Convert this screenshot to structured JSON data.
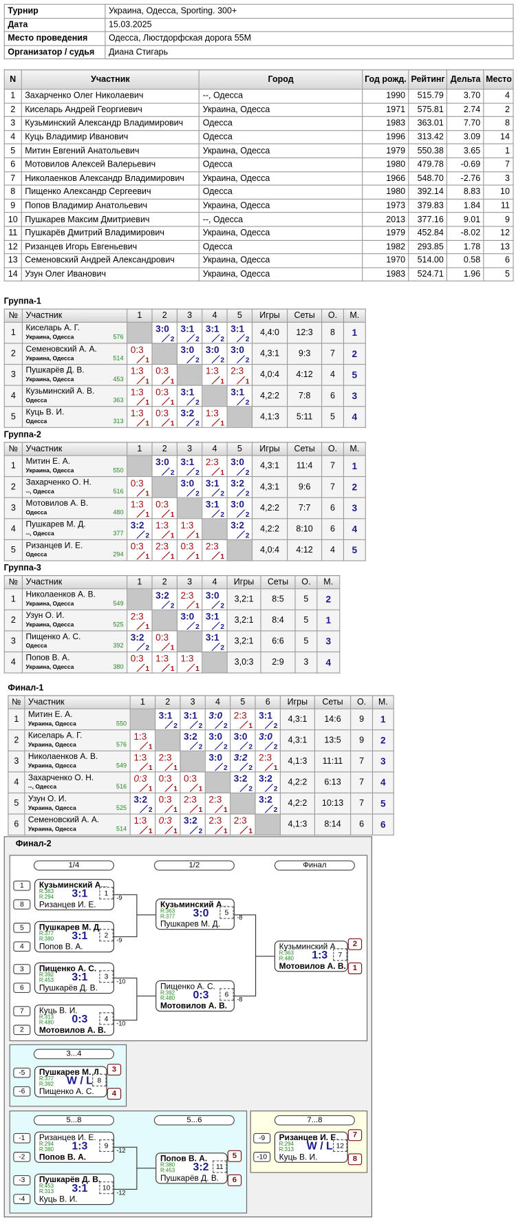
{
  "info": {
    "rows": [
      [
        "Турнир",
        "Украина, Одесса, Sporting. 300+"
      ],
      [
        "Дата",
        "15.03.2025"
      ],
      [
        "Место проведения",
        "Одесса, Люстдорфская дорога 55М"
      ],
      [
        "Организатор / судья",
        "Диана Стигарь"
      ]
    ]
  },
  "players": {
    "header": [
      "N",
      "Участник",
      "Город",
      "Год рожд.",
      "Рейтинг",
      "Дельта",
      "Место"
    ],
    "rows": [
      [
        "1",
        "Захарченко Олег Николаевич",
        "--, Одесса",
        "1990",
        "515.79",
        "3.70",
        "4"
      ],
      [
        "2",
        "Киселарь Андрей Георгиевич",
        "Украина, Одесса",
        "1971",
        "575.81",
        "2.74",
        "2"
      ],
      [
        "3",
        "Кузьминский Александр Владимирович",
        "Одесса",
        "1983",
        "363.01",
        "7.70",
        "8"
      ],
      [
        "4",
        "Куць Владимир Иванович",
        "Одесса",
        "1996",
        "313.42",
        "3.09",
        "14"
      ],
      [
        "5",
        "Митин Евгений Анатольевич",
        "Украина, Одесса",
        "1979",
        "550.38",
        "3.65",
        "1"
      ],
      [
        "6",
        "Мотовилов Алексей Валерьевич",
        "Одесса",
        "1980",
        "479.78",
        "-0.69",
        "7"
      ],
      [
        "7",
        "Николаенков Александр Владимирович",
        "Украина, Одесса",
        "1966",
        "548.70",
        "-2.76",
        "3"
      ],
      [
        "8",
        "Пищенко Александр Сергеевич",
        "Одесса",
        "1980",
        "392.14",
        "8.83",
        "10"
      ],
      [
        "9",
        "Попов Владимир Анатольевич",
        "Украина, Одесса",
        "1973",
        "379.83",
        "1.84",
        "11"
      ],
      [
        "10",
        "Пушкарев Максим Дмитриевич",
        "--, Одесса",
        "2013",
        "377.16",
        "9.01",
        "9"
      ],
      [
        "11",
        "Пушкарёв Дмитрий Владимирович",
        "Украина, Одесса",
        "1979",
        "452.84",
        "-8.02",
        "12"
      ],
      [
        "12",
        "Ризанцев Игорь Евгеньевич",
        "Одесса",
        "1982",
        "293.85",
        "1.78",
        "13"
      ],
      [
        "13",
        "Семеновский Андрей Александрович",
        "Украина, Одесса",
        "1970",
        "514.00",
        "0.58",
        "6"
      ],
      [
        "14",
        "Узун Олег Иванович",
        "Украина, Одесса",
        "1983",
        "524.71",
        "1.96",
        "5"
      ]
    ]
  },
  "groups": [
    {
      "title": "Группа-1",
      "header": [
        "№",
        "Участник",
        "1",
        "2",
        "3",
        "4",
        "5",
        "Игры",
        "Сеты",
        "О.",
        "М."
      ],
      "rows": [
        {
          "cells": [
            "1",
            "Киселарь А. Г.",
            "Украина, Одесса",
            "576"
          ],
          "results": [
            null,
            {
              "s": "3:0",
              "p": "2"
            },
            {
              "s": "3:1",
              "p": "2"
            },
            {
              "s": "3:1",
              "p": "2"
            },
            {
              "s": "3:1",
              "p": "2"
            }
          ],
          "totals": [
            "4,4:0",
            "12:3",
            "8",
            "1"
          ]
        },
        {
          "cells": [
            "2",
            "Семеновский А. А.",
            "Украина, Одесса",
            "514"
          ],
          "results": [
            {
              "s": "0:3",
              "p": "1"
            },
            null,
            {
              "s": "3:0",
              "p": "2"
            },
            {
              "s": "3:0",
              "p": "2"
            },
            {
              "s": "3:0",
              "p": "2"
            }
          ],
          "totals": [
            "4,3:1",
            "9:3",
            "7",
            "2"
          ]
        },
        {
          "cells": [
            "3",
            "Пушкарёв Д. В.",
            "Украина, Одесса",
            "453"
          ],
          "results": [
            {
              "s": "1:3",
              "p": "1"
            },
            {
              "s": "0:3",
              "p": "1"
            },
            null,
            {
              "s": "1:3",
              "p": "1"
            },
            {
              "s": "2:3",
              "p": "1"
            }
          ],
          "totals": [
            "4,0:4",
            "4:12",
            "4",
            "5"
          ]
        },
        {
          "cells": [
            "4",
            "Кузьминский А. В.",
            "Одесса",
            "363"
          ],
          "results": [
            {
              "s": "1:3",
              "p": "1"
            },
            {
              "s": "0:3",
              "p": "1"
            },
            {
              "s": "3:1",
              "p": "2"
            },
            null,
            {
              "s": "3:1",
              "p": "2"
            }
          ],
          "totals": [
            "4,2:2",
            "7:8",
            "6",
            "3"
          ]
        },
        {
          "cells": [
            "5",
            "Куць В. И.",
            "Одесса",
            "313"
          ],
          "results": [
            {
              "s": "1:3",
              "p": "1"
            },
            {
              "s": "0:3",
              "p": "1"
            },
            {
              "s": "3:2",
              "p": "2"
            },
            {
              "s": "1:3",
              "p": "1"
            },
            null
          ],
          "totals": [
            "4,1:3",
            "5:11",
            "5",
            "4"
          ]
        }
      ]
    },
    {
      "title": "Группа-2",
      "header": [
        "№",
        "Участник",
        "1",
        "2",
        "3",
        "4",
        "5",
        "Игры",
        "Сеты",
        "О.",
        "М."
      ],
      "rows": [
        {
          "cells": [
            "1",
            "Митин Е. А.",
            "Украина, Одесса",
            "550"
          ],
          "results": [
            null,
            {
              "s": "3:0",
              "p": "2"
            },
            {
              "s": "3:1",
              "p": "2"
            },
            {
              "s": "2:3",
              "p": "1"
            },
            {
              "s": "3:0",
              "p": "2"
            }
          ],
          "totals": [
            "4,3:1",
            "11:4",
            "7",
            "1"
          ]
        },
        {
          "cells": [
            "2",
            "Захарченко О. Н.",
            "--, Одесса",
            "516"
          ],
          "results": [
            {
              "s": "0:3",
              "p": "1"
            },
            null,
            {
              "s": "3:0",
              "p": "2"
            },
            {
              "s": "3:1",
              "p": "2"
            },
            {
              "s": "3:2",
              "p": "2"
            }
          ],
          "totals": [
            "4,3:1",
            "9:6",
            "7",
            "2"
          ]
        },
        {
          "cells": [
            "3",
            "Мотовилов А. В.",
            "Одесса",
            "480"
          ],
          "results": [
            {
              "s": "1:3",
              "p": "1"
            },
            {
              "s": "0:3",
              "p": "1"
            },
            null,
            {
              "s": "3:1",
              "p": "2"
            },
            {
              "s": "3:0",
              "p": "2"
            }
          ],
          "totals": [
            "4,2:2",
            "7:7",
            "6",
            "3"
          ]
        },
        {
          "cells": [
            "4",
            "Пушкарев М. Д.",
            "--, Одесса",
            "377"
          ],
          "results": [
            {
              "s": "3:2",
              "p": "2"
            },
            {
              "s": "1:3",
              "p": "1"
            },
            {
              "s": "1:3",
              "p": "1"
            },
            null,
            {
              "s": "3:2",
              "p": "2"
            }
          ],
          "totals": [
            "4,2:2",
            "8:10",
            "6",
            "4"
          ]
        },
        {
          "cells": [
            "5",
            "Ризанцев И. Е.",
            "Одесса",
            "294"
          ],
          "results": [
            {
              "s": "0:3",
              "p": "1"
            },
            {
              "s": "2:3",
              "p": "1"
            },
            {
              "s": "0:3",
              "p": "1"
            },
            {
              "s": "2:3",
              "p": "1"
            },
            null
          ],
          "totals": [
            "4,0:4",
            "4:12",
            "4",
            "5"
          ]
        }
      ]
    },
    {
      "title": "Группа-3",
      "header": [
        "№",
        "Участник",
        "1",
        "2",
        "3",
        "4",
        "Игры",
        "Сеты",
        "О.",
        "М."
      ],
      "rows": [
        {
          "cells": [
            "1",
            "Николаенков А. В.",
            "Украина, Одесса",
            "549"
          ],
          "results": [
            null,
            {
              "s": "3:2",
              "p": "2"
            },
            {
              "s": "2:3",
              "p": "1"
            },
            {
              "s": "3:0",
              "p": "2"
            }
          ],
          "totals": [
            "3,2:1",
            "8:5",
            "5",
            "2"
          ]
        },
        {
          "cells": [
            "2",
            "Узун О. И.",
            "Украина, Одесса",
            "525"
          ],
          "results": [
            {
              "s": "2:3",
              "p": "1"
            },
            null,
            {
              "s": "3:0",
              "p": "2"
            },
            {
              "s": "3:1",
              "p": "2"
            }
          ],
          "totals": [
            "3,2:1",
            "8:4",
            "5",
            "1"
          ]
        },
        {
          "cells": [
            "3",
            "Пищенко А. С.",
            "Одесса",
            "392"
          ],
          "results": [
            {
              "s": "3:2",
              "p": "2"
            },
            {
              "s": "0:3",
              "p": "1"
            },
            null,
            {
              "s": "3:1",
              "p": "2"
            }
          ],
          "totals": [
            "3,2:1",
            "6:6",
            "5",
            "3"
          ]
        },
        {
          "cells": [
            "4",
            "Попов В. А.",
            "Украина, Одесса",
            "380"
          ],
          "results": [
            {
              "s": "0:3",
              "p": "1"
            },
            {
              "s": "1:3",
              "p": "1"
            },
            {
              "s": "1:3",
              "p": "1"
            },
            null
          ],
          "totals": [
            "3,0:3",
            "2:9",
            "3",
            "4"
          ]
        }
      ]
    },
    {
      "title": "Финал-1",
      "header": [
        "№",
        "Участник",
        "1",
        "2",
        "3",
        "4",
        "5",
        "6",
        "Игры",
        "Сеты",
        "О.",
        "М."
      ],
      "rows": [
        {
          "cells": [
            "1",
            "Митин Е. А.",
            "Украина, Одесса",
            "550"
          ],
          "results": [
            null,
            {
              "s": "3:1",
              "p": "2"
            },
            {
              "s": "3:1",
              "p": "2"
            },
            {
              "s": "3:0",
              "p": "2",
              "i": true
            },
            {
              "s": "2:3",
              "p": "1"
            },
            {
              "s": "3:1",
              "p": "2"
            }
          ],
          "totals": [
            "4,3:1",
            "14:6",
            "9",
            "1"
          ]
        },
        {
          "cells": [
            "2",
            "Киселарь А. Г.",
            "Украина, Одесса",
            "576"
          ],
          "results": [
            {
              "s": "1:3",
              "p": "1"
            },
            null,
            {
              "s": "3:2",
              "p": "2"
            },
            {
              "s": "3:0",
              "p": "2"
            },
            {
              "s": "3:0",
              "p": "2"
            },
            {
              "s": "3:0",
              "p": "2",
              "i": true
            }
          ],
          "totals": [
            "4,3:1",
            "13:5",
            "9",
            "2"
          ]
        },
        {
          "cells": [
            "3",
            "Николаенков А. В.",
            "Украина, Одесса",
            "549"
          ],
          "results": [
            {
              "s": "1:3",
              "p": "1"
            },
            {
              "s": "2:3",
              "p": "1"
            },
            null,
            {
              "s": "3:0",
              "p": "2"
            },
            {
              "s": "3:2",
              "p": "2",
              "i": true
            },
            {
              "s": "2:3",
              "p": "1"
            }
          ],
          "totals": [
            "4,1:3",
            "11:11",
            "7",
            "3"
          ]
        },
        {
          "cells": [
            "4",
            "Захарченко О. Н.",
            "--, Одесса",
            "516"
          ],
          "results": [
            {
              "s": "0:3",
              "p": "1",
              "i": true
            },
            {
              "s": "0:3",
              "p": "1"
            },
            {
              "s": "0:3",
              "p": "1"
            },
            null,
            {
              "s": "3:2",
              "p": "2"
            },
            {
              "s": "3:2",
              "p": "2"
            }
          ],
          "totals": [
            "4,2:2",
            "6:13",
            "7",
            "4"
          ]
        },
        {
          "cells": [
            "5",
            "Узун О. И.",
            "Украина, Одесса",
            "525"
          ],
          "results": [
            {
              "s": "3:2",
              "p": "2"
            },
            {
              "s": "0:3",
              "p": "1"
            },
            {
              "s": "2:3",
              "p": "1"
            },
            {
              "s": "2:3",
              "p": "1"
            },
            null,
            {
              "s": "3:2",
              "p": "2"
            }
          ],
          "totals": [
            "4,2:2",
            "10:13",
            "7",
            "5"
          ]
        },
        {
          "cells": [
            "6",
            "Семеновский А. А.",
            "Украина, Одесса",
            "514"
          ],
          "results": [
            {
              "s": "1:3",
              "p": "1"
            },
            {
              "s": "0:3",
              "p": "1",
              "i": true
            },
            {
              "s": "3:2",
              "p": "2"
            },
            {
              "s": "2:3",
              "p": "1"
            },
            {
              "s": "2:3",
              "p": "1"
            },
            null
          ],
          "totals": [
            "4,1:3",
            "8:14",
            "6",
            "6"
          ]
        }
      ]
    }
  ],
  "bracket": {
    "title": "Финал-2",
    "labels": [
      "1/4",
      "1/2",
      "Финал",
      "3...4",
      "5...8",
      "5...6",
      "7...8"
    ],
    "matches": [
      {
        "inputs": [
          "1",
          "8"
        ],
        "p1": "Кузьминский А...",
        "r1": "R:363",
        "p2": "Ризанцев И. Е.",
        "r2": "R:294",
        "score": "3:1",
        "num": "1",
        "next": "-9",
        "winner": 1
      },
      {
        "inputs": [
          "5",
          "4"
        ],
        "p1": "Пушкарев М. Д.",
        "r1": "R:377",
        "p2": "Попов В. А.",
        "r2": "R:380",
        "score": "3:1",
        "num": "2",
        "next": "-9",
        "winner": 1
      },
      {
        "inputs": [
          "3",
          "6"
        ],
        "p1": "Пищенко А. С.",
        "r1": "R:392",
        "p2": "Пушкарёв Д. В.",
        "r2": "R:453",
        "score": "3:1",
        "num": "3",
        "next": "-10",
        "winner": 1
      },
      {
        "inputs": [
          "7",
          "2"
        ],
        "p1": "Куць В. И.",
        "r1": "R:313",
        "p2": "Мотовилов А. В.",
        "r2": "R:480",
        "score": "0:3",
        "num": "4",
        "next": "-10",
        "winner": 2
      },
      {
        "p1": "Кузьминский А...",
        "r1": "R:363",
        "p2": "Пушкарев М. Д.",
        "r2": "R:377",
        "score": "3:0",
        "num": "5",
        "next": "-8",
        "winner": 1
      },
      {
        "p1": "Пищенко А. С.",
        "r1": "R:392",
        "p2": "Мотовилов А. В.",
        "r2": "R:480",
        "score": "0:3",
        "num": "6",
        "next": "-8",
        "winner": 2
      },
      {
        "p1": "Кузьминский А...",
        "r1": "R:363",
        "p2": "Мотовилов А. В.",
        "r2": "R:480",
        "score": "1:3",
        "num": "7",
        "places": [
          "2",
          "1"
        ],
        "winner": 2
      },
      {
        "inputs": [
          "-5",
          "-6"
        ],
        "p1": "Пушкарев М. Д.",
        "r1": "R:377",
        "p2": "Пищенко А. С.",
        "r2": "R:392",
        "score": "W / L",
        "num": "8",
        "places": [
          "3",
          "4"
        ],
        "winner": 1
      },
      {
        "inputs": [
          "-1",
          "-2"
        ],
        "p1": "Ризанцев И. Е.",
        "r1": "R:294",
        "p2": "Попов В. А.",
        "r2": "R:380",
        "score": "1:3",
        "num": "9",
        "next": "-12",
        "winner": 2
      },
      {
        "inputs": [
          "-3",
          "-4"
        ],
        "p1": "Пушкарёв Д. В.",
        "r1": "R:453",
        "p2": "Куць В. И.",
        "r2": "R:313",
        "score": "3:1",
        "num": "10",
        "next": "-12",
        "winner": 1
      },
      {
        "p1": "Попов В. А.",
        "r1": "R:380",
        "p2": "Пушкарёв Д. В.",
        "r2": "R:453",
        "score": "3:2",
        "num": "11",
        "places": [
          "5",
          "6"
        ],
        "winner": 1
      },
      {
        "inputs": [
          "-9",
          "-10"
        ],
        "p1": "Ризанцев И. Е.",
        "r1": "R:294",
        "p2": "Куць В. И.",
        "r2": "R:313",
        "score": "W / L",
        "num": "12",
        "places": [
          "7",
          "8"
        ],
        "winner": 1
      }
    ]
  }
}
